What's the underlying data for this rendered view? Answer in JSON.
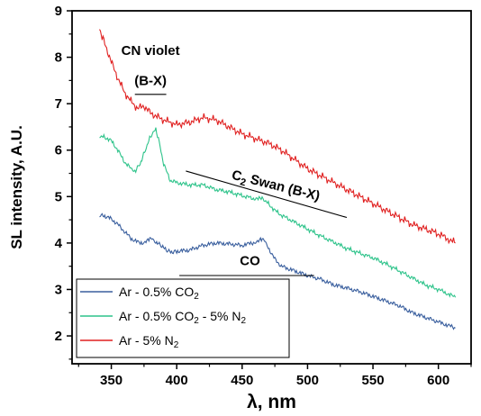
{
  "chart_data": {
    "type": "line",
    "xlabel": "λ, nm",
    "ylabel": "SL intensity, A.U.",
    "xlim": [
      320,
      625
    ],
    "ylim": [
      1.4,
      9
    ],
    "x_ticks": [
      350,
      400,
      450,
      500,
      550,
      600
    ],
    "y_ticks": [
      2,
      3,
      4,
      5,
      6,
      7,
      8,
      9
    ],
    "grid": false,
    "legend_position": "bottom-left",
    "series": [
      {
        "name": "Ar - 0.5% CO2",
        "legend_parts": [
          "Ar - 0.5% CO",
          "2",
          ""
        ],
        "color": "#3a5f9e",
        "x": [
          341,
          345,
          350,
          355,
          360,
          365,
          370,
          375,
          378,
          381,
          384,
          388,
          392,
          396,
          400,
          410,
          420,
          430,
          440,
          450,
          458,
          464,
          467,
          470,
          475,
          480,
          490,
          500,
          510,
          520,
          530,
          540,
          550,
          560,
          570,
          580,
          590,
          600,
          613
        ],
        "values": [
          4.6,
          4.58,
          4.52,
          4.4,
          4.25,
          4.1,
          4.02,
          4.0,
          4.05,
          4.1,
          4.02,
          3.95,
          3.85,
          3.8,
          3.82,
          3.85,
          3.95,
          4.0,
          3.98,
          3.95,
          4.0,
          4.07,
          4.05,
          3.9,
          3.65,
          3.5,
          3.4,
          3.3,
          3.22,
          3.1,
          3.03,
          2.95,
          2.85,
          2.75,
          2.65,
          2.5,
          2.4,
          2.3,
          2.17
        ]
      },
      {
        "name": "Ar - 0.5% CO2 - 5% N2",
        "legend_parts": [
          "Ar - 0.5% CO",
          "2",
          " - 5% N",
          "2"
        ],
        "color": "#2dc38a",
        "x": [
          341,
          345,
          350,
          355,
          360,
          365,
          368,
          372,
          376,
          380,
          384,
          386,
          390,
          395,
          400,
          410,
          420,
          430,
          440,
          450,
          460,
          466,
          470,
          475,
          480,
          490,
          500,
          510,
          520,
          530,
          540,
          550,
          560,
          570,
          580,
          590,
          600,
          613
        ],
        "values": [
          6.3,
          6.28,
          6.2,
          6.0,
          5.75,
          5.6,
          5.55,
          5.7,
          6.0,
          6.3,
          6.45,
          6.25,
          5.7,
          5.35,
          5.3,
          5.25,
          5.25,
          5.15,
          5.1,
          5.02,
          4.95,
          4.95,
          4.85,
          4.7,
          4.6,
          4.45,
          4.3,
          4.15,
          4.02,
          3.88,
          3.78,
          3.68,
          3.55,
          3.4,
          3.25,
          3.1,
          3.0,
          2.83
        ]
      },
      {
        "name": "Ar - 5% N2",
        "legend_parts": [
          "Ar - 5% N",
          "2"
        ],
        "color": "#e02020",
        "x": [
          341,
          345,
          350,
          355,
          360,
          365,
          370,
          375,
          380,
          385,
          390,
          395,
          400,
          410,
          420,
          430,
          440,
          450,
          460,
          470,
          480,
          490,
          500,
          510,
          520,
          530,
          540,
          550,
          560,
          570,
          580,
          590,
          600,
          613
        ],
        "values": [
          8.6,
          8.3,
          7.9,
          7.55,
          7.25,
          7.05,
          6.9,
          6.95,
          6.8,
          6.72,
          6.65,
          6.6,
          6.55,
          6.6,
          6.7,
          6.65,
          6.5,
          6.35,
          6.25,
          6.15,
          6.0,
          5.8,
          5.6,
          5.45,
          5.3,
          5.15,
          5.0,
          4.85,
          4.7,
          4.55,
          4.4,
          4.3,
          4.2,
          4.0
        ]
      }
    ],
    "annotations": [
      {
        "lines": [
          "CN violet",
          "(B-X)"
        ],
        "bar_x": [
          368,
          392
        ],
        "bar_y": 7.2,
        "text_x": 380,
        "text_y1": 8.05,
        "text_y2": 7.4
      },
      {
        "prefix": "C",
        "subscript": "2",
        "suffix": " Swan (B-X)",
        "rotation": 14,
        "line_x": [
          407,
          530
        ],
        "line_y": [
          5.55,
          4.55
        ],
        "text_x": 475,
        "text_y": 5.15
      },
      {
        "text": "CO",
        "bar_x": [
          402,
          505
        ],
        "bar_y": 3.3,
        "text_x": 456,
        "text_y": 3.52
      }
    ]
  }
}
